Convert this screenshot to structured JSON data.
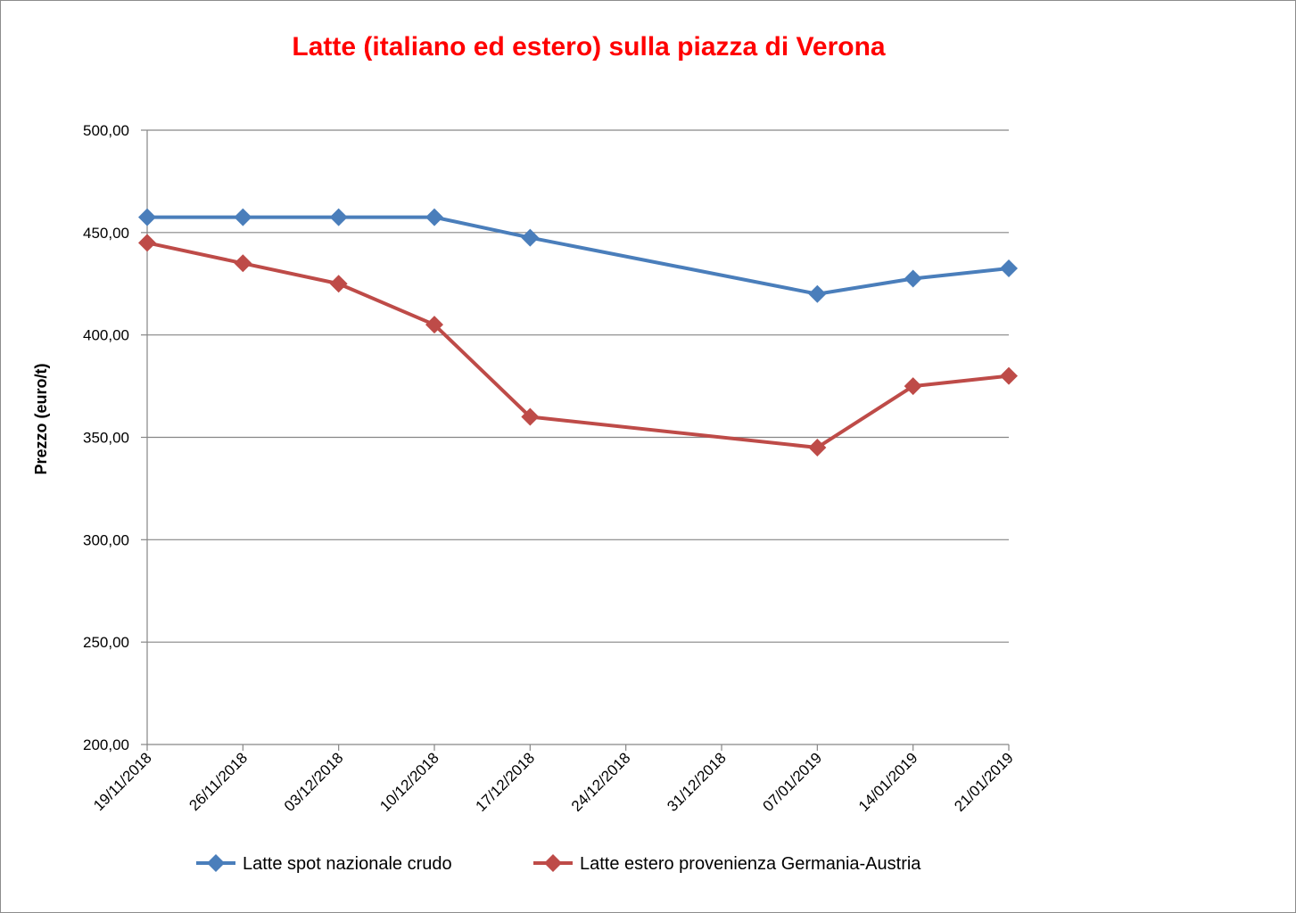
{
  "chart_data": {
    "type": "line",
    "title": "Latte (italiano ed estero) sulla piazza di Verona",
    "title_color": "#ff0000",
    "ylabel": "Prezzo (euro/t)",
    "xlabel": "",
    "ylim": [
      200,
      500
    ],
    "y_ticks": [
      "200,00",
      "250,00",
      "300,00",
      "350,00",
      "400,00",
      "450,00",
      "500,00"
    ],
    "y_tick_values": [
      200,
      250,
      300,
      350,
      400,
      450,
      500
    ],
    "categories": [
      "19/11/2018",
      "26/11/2018",
      "03/12/2018",
      "10/12/2018",
      "17/12/2018",
      "24/12/2018",
      "31/12/2018",
      "07/01/2019",
      "14/01/2019",
      "21/01/2019"
    ],
    "grid": "horizontal",
    "legend": "bottom",
    "series": [
      {
        "name": "Latte spot nazionale crudo",
        "color": "#4a7ebb",
        "values": [
          457.5,
          457.5,
          457.5,
          457.5,
          447.5,
          null,
          null,
          420,
          427.5,
          432.5
        ]
      },
      {
        "name": "Latte estero provenienza Germania-Austria",
        "color": "#be4b48",
        "values": [
          445,
          435,
          425,
          405,
          360,
          null,
          null,
          345,
          375,
          380
        ]
      }
    ]
  }
}
